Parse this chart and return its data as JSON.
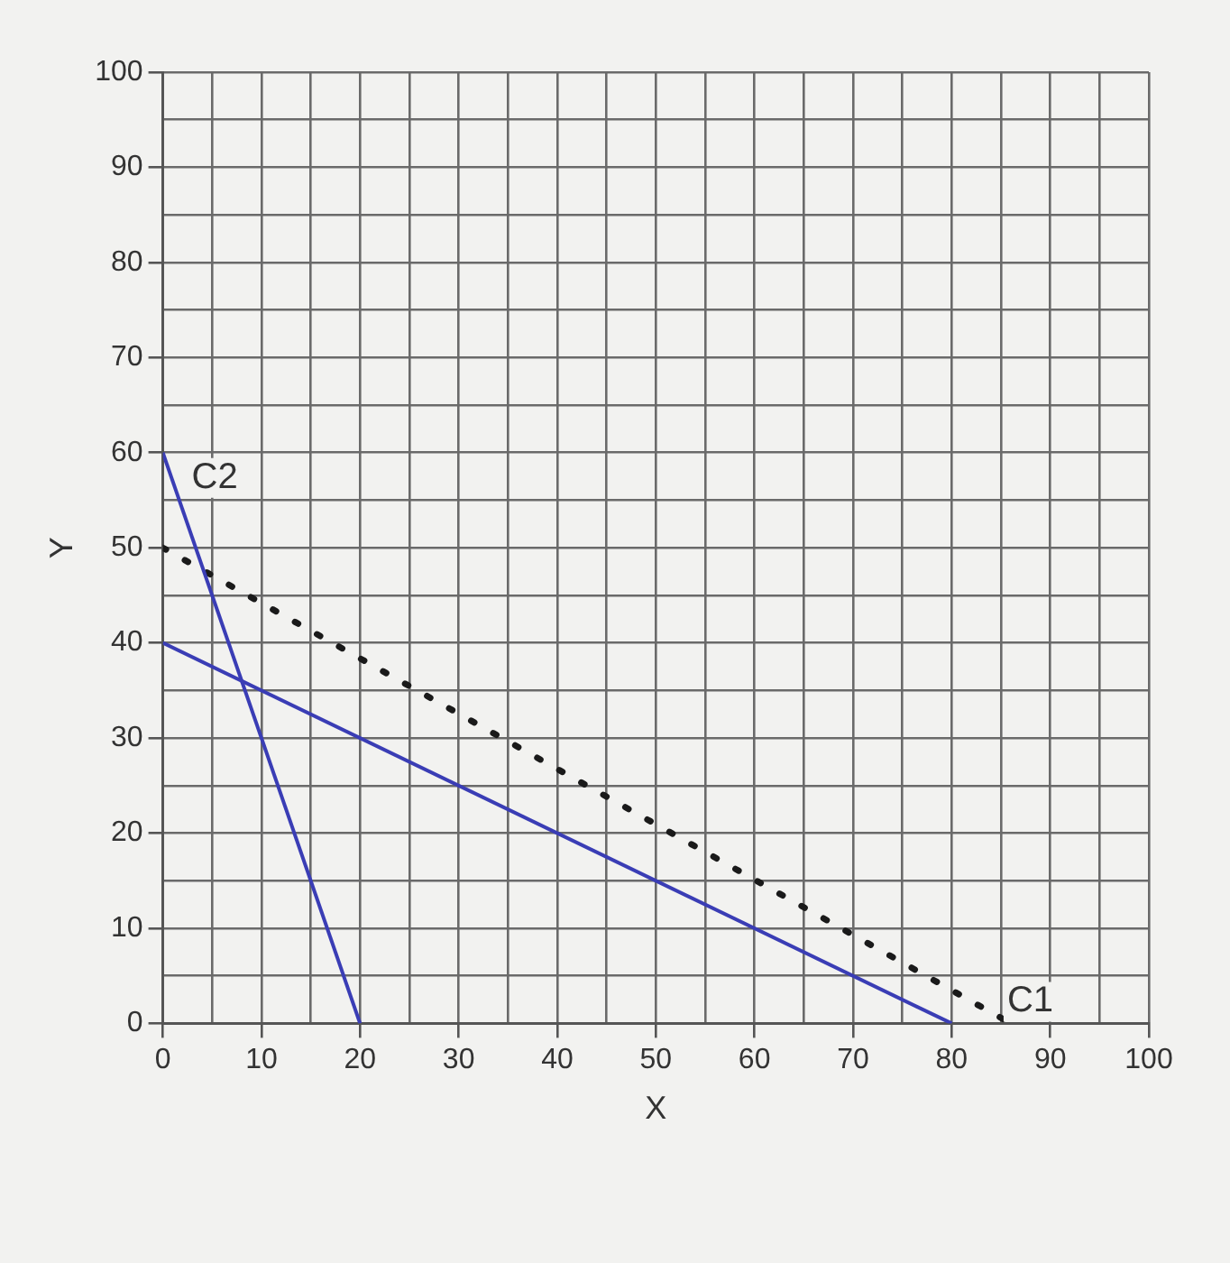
{
  "chart_data": {
    "type": "line",
    "xlabel": "X",
    "ylabel": "Y",
    "xlim": [
      0,
      100
    ],
    "ylim": [
      0,
      100
    ],
    "xticks": [
      0,
      {
        "value": 5,
        "label": null
      },
      10,
      {
        "value": 15,
        "label": null
      },
      20,
      {
        "value": 25,
        "label": null
      },
      30,
      {
        "value": 35,
        "label": null
      },
      40,
      {
        "value": 45,
        "label": null
      },
      50,
      {
        "value": 55,
        "label": null
      },
      60,
      {
        "value": 65,
        "label": null
      },
      70,
      {
        "value": 75,
        "label": null
      },
      80,
      {
        "value": 85,
        "label": null
      },
      90,
      {
        "value": 95,
        "label": null
      },
      100
    ],
    "yticks": [
      0,
      {
        "value": 5,
        "label": null
      },
      10,
      {
        "value": 15,
        "label": null
      },
      20,
      {
        "value": 25,
        "label": null
      },
      30,
      {
        "value": 35,
        "label": null
      },
      40,
      {
        "value": 45,
        "label": null
      },
      50,
      {
        "value": 55,
        "label": null
      },
      60,
      {
        "value": 65,
        "label": null
      },
      70,
      {
        "value": 75,
        "label": null
      },
      80,
      {
        "value": 85,
        "label": null
      },
      90,
      {
        "value": 95,
        "label": null
      },
      100
    ],
    "grid": true,
    "marker": "none",
    "series": [
      {
        "name": "C2",
        "color": "#3a3db5",
        "x": [
          0,
          20
        ],
        "values": [
          60,
          0
        ],
        "line_style": "solid"
      },
      {
        "color": "#3a3db5",
        "x": [
          0,
          80
        ],
        "values": [
          40,
          0
        ],
        "line_style": "solid"
      },
      {
        "name": "C1",
        "color": "#1a1a1a",
        "x": [
          0,
          86
        ],
        "values": [
          50,
          0
        ],
        "line_style": "dotted"
      }
    ]
  }
}
